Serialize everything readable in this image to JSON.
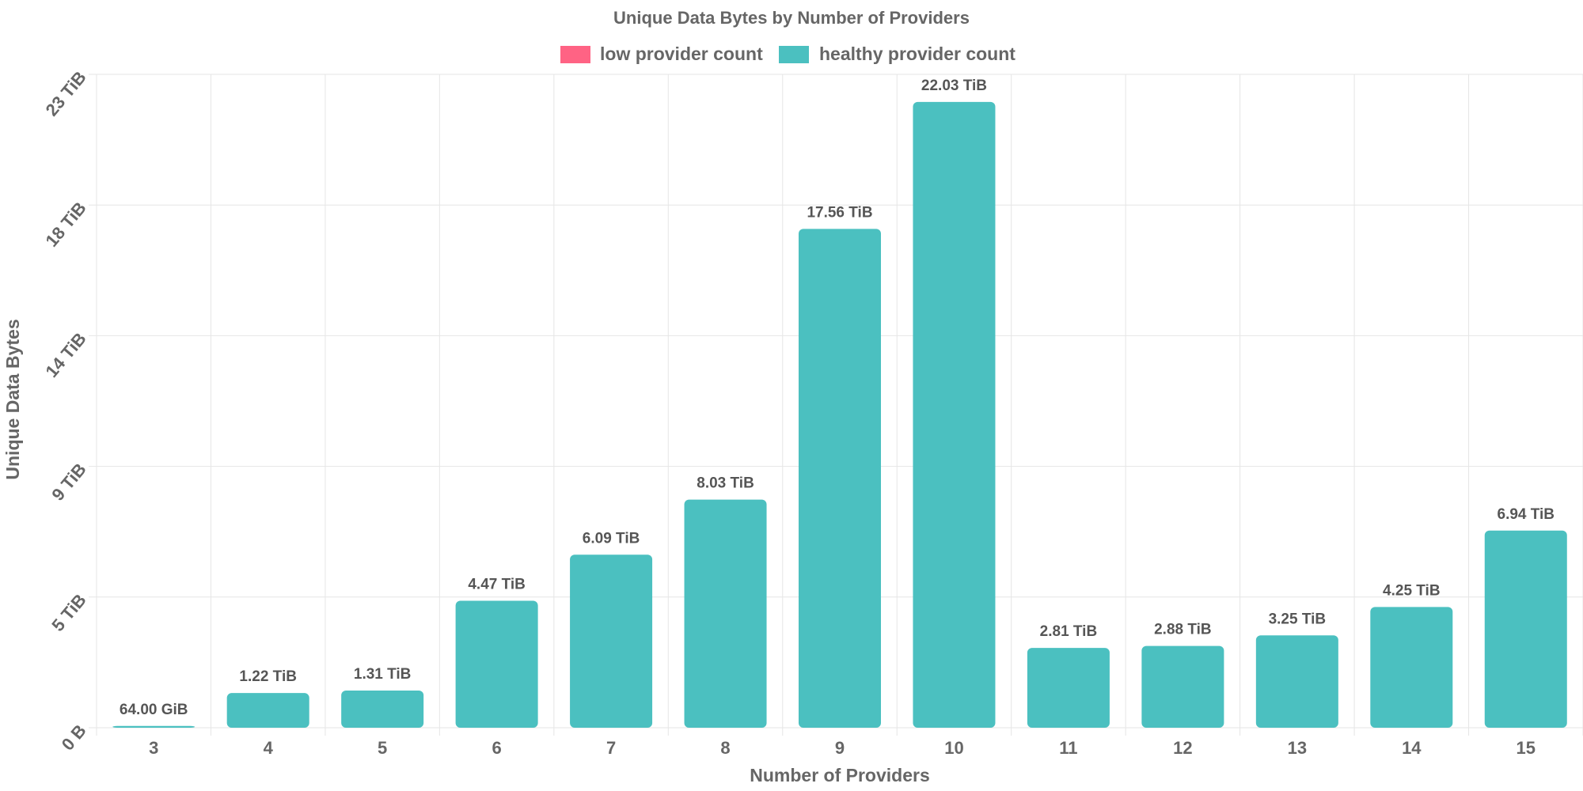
{
  "chart_data": {
    "type": "bar",
    "title": "Unique Data Bytes by Number of Providers",
    "xlabel": "Number of Providers",
    "ylabel": "Unique Data Bytes",
    "categories": [
      "3",
      "4",
      "5",
      "6",
      "7",
      "8",
      "9",
      "10",
      "11",
      "12",
      "13",
      "14",
      "15"
    ],
    "values_tib": [
      0.0625,
      1.22,
      1.31,
      4.47,
      6.09,
      8.03,
      17.56,
      22.03,
      2.81,
      2.88,
      3.25,
      4.25,
      6.94
    ],
    "data_labels": [
      "64.00 GiB",
      "1.22 TiB",
      "1.31 TiB",
      "4.47 TiB",
      "6.09 TiB",
      "8.03 TiB",
      "17.56 TiB",
      "22.03 TiB",
      "2.81 TiB",
      "2.88 TiB",
      "3.25 TiB",
      "4.25 TiB",
      "6.94 TiB"
    ],
    "series_class": [
      "healthy",
      "healthy",
      "healthy",
      "healthy",
      "healthy",
      "healthy",
      "healthy",
      "healthy",
      "healthy",
      "healthy",
      "healthy",
      "healthy",
      "healthy"
    ],
    "legend": [
      {
        "name": "low provider count",
        "color": "#ff6384"
      },
      {
        "name": "healthy provider count",
        "color": "#4bc0c0"
      }
    ],
    "legend_position": "top",
    "y_ticks": [
      {
        "value": 0,
        "label": "0 B"
      },
      {
        "value": 4.6,
        "label": "5 TiB"
      },
      {
        "value": 9.2,
        "label": "9 TiB"
      },
      {
        "value": 13.8,
        "label": "14 TiB"
      },
      {
        "value": 18.4,
        "label": "18 TiB"
      },
      {
        "value": 23.0,
        "label": "23 TiB"
      }
    ],
    "ylim": [
      0,
      23.0
    ],
    "grid": true,
    "colors": {
      "healthy": "#4bc0c0",
      "low": "#ff6384",
      "grid": "#e6e6e6",
      "text": "#666666"
    }
  }
}
